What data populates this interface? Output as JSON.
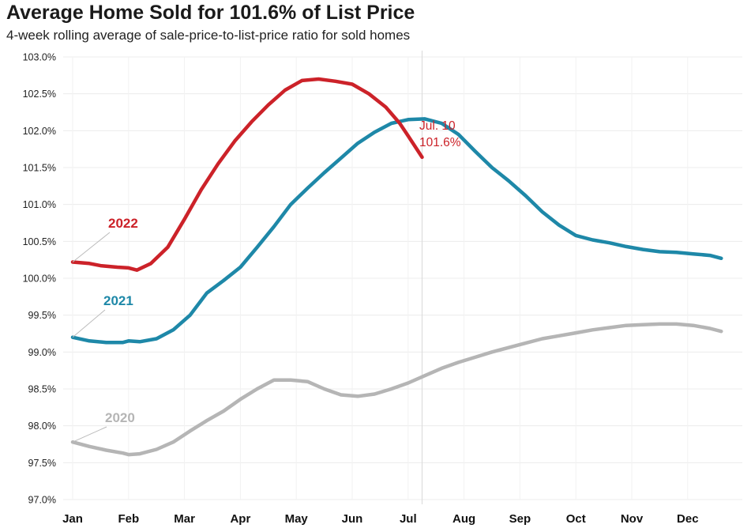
{
  "chart_data": {
    "type": "line",
    "title": "Average Home Sold for 101.6% of List Price",
    "subtitle": "4-week rolling average of sale-price-to-list-price ratio for sold homes",
    "x_ticks": [
      "Jan",
      "Feb",
      "Mar",
      "Apr",
      "May",
      "Jun",
      "Jul",
      "Aug",
      "Sep",
      "Oct",
      "Nov",
      "Dec"
    ],
    "y_ticks": [
      "97.0%",
      "97.5%",
      "98.0%",
      "98.5%",
      "99.0%",
      "99.5%",
      "100.0%",
      "100.5%",
      "101.0%",
      "101.5%",
      "102.0%",
      "102.5%",
      "103.0%"
    ],
    "ylim": [
      97.0,
      103.0
    ],
    "grid": true,
    "series": [
      {
        "name": "2020",
        "color": "#b5b5b5",
        "x": [
          0.0,
          0.3,
          0.6,
          0.9,
          1.0,
          1.2,
          1.5,
          1.8,
          2.1,
          2.4,
          2.7,
          3.0,
          3.3,
          3.6,
          3.9,
          4.2,
          4.5,
          4.8,
          5.1,
          5.4,
          5.7,
          6.0,
          6.3,
          6.6,
          6.9,
          7.2,
          7.5,
          7.8,
          8.1,
          8.4,
          8.7,
          9.0,
          9.3,
          9.6,
          9.9,
          10.2,
          10.5,
          10.8,
          11.1,
          11.4,
          11.6
        ],
        "values": [
          97.78,
          97.72,
          97.67,
          97.63,
          97.61,
          97.62,
          97.68,
          97.78,
          97.93,
          98.07,
          98.2,
          98.36,
          98.5,
          98.62,
          98.62,
          98.6,
          98.5,
          98.42,
          98.4,
          98.43,
          98.5,
          98.58,
          98.68,
          98.78,
          98.86,
          98.93,
          99.0,
          99.06,
          99.12,
          99.18,
          99.22,
          99.26,
          99.3,
          99.33,
          99.36,
          99.37,
          99.38,
          99.38,
          99.36,
          99.32,
          99.28
        ]
      },
      {
        "name": "2021",
        "color": "#1e88a8",
        "x": [
          0.0,
          0.3,
          0.6,
          0.9,
          1.0,
          1.2,
          1.5,
          1.8,
          2.1,
          2.4,
          2.7,
          3.0,
          3.3,
          3.6,
          3.9,
          4.2,
          4.5,
          4.8,
          5.1,
          5.4,
          5.7,
          6.0,
          6.3,
          6.6,
          6.9,
          7.2,
          7.5,
          7.8,
          8.1,
          8.4,
          8.7,
          9.0,
          9.3,
          9.6,
          9.9,
          10.2,
          10.5,
          10.8,
          11.1,
          11.4,
          11.6
        ],
        "values": [
          99.2,
          99.15,
          99.13,
          99.13,
          99.15,
          99.14,
          99.18,
          99.3,
          99.5,
          99.8,
          99.97,
          100.15,
          100.42,
          100.7,
          101.0,
          101.22,
          101.43,
          101.63,
          101.83,
          101.98,
          102.1,
          102.15,
          102.16,
          102.1,
          101.95,
          101.72,
          101.5,
          101.32,
          101.12,
          100.9,
          100.72,
          100.58,
          100.52,
          100.48,
          100.43,
          100.39,
          100.36,
          100.35,
          100.33,
          100.31,
          100.27
        ]
      },
      {
        "name": "2022",
        "color": "#cc2229",
        "x": [
          0.0,
          0.3,
          0.5,
          0.8,
          1.0,
          1.15,
          1.4,
          1.7,
          2.0,
          2.3,
          2.6,
          2.9,
          3.2,
          3.5,
          3.8,
          4.1,
          4.4,
          4.7,
          5.0,
          5.3,
          5.6,
          5.85,
          6.0,
          6.25
        ],
        "values": [
          100.22,
          100.2,
          100.17,
          100.15,
          100.14,
          100.11,
          100.2,
          100.42,
          100.8,
          101.2,
          101.55,
          101.86,
          102.12,
          102.35,
          102.55,
          102.68,
          102.7,
          102.67,
          102.63,
          102.5,
          102.32,
          102.1,
          101.93,
          101.64
        ]
      }
    ],
    "series_labels": [
      "2022",
      "2021",
      "2020"
    ],
    "annotation": {
      "line1": "Jul. 10",
      "line2": "101.6%",
      "x": 6.25,
      "y": 101.64
    }
  }
}
